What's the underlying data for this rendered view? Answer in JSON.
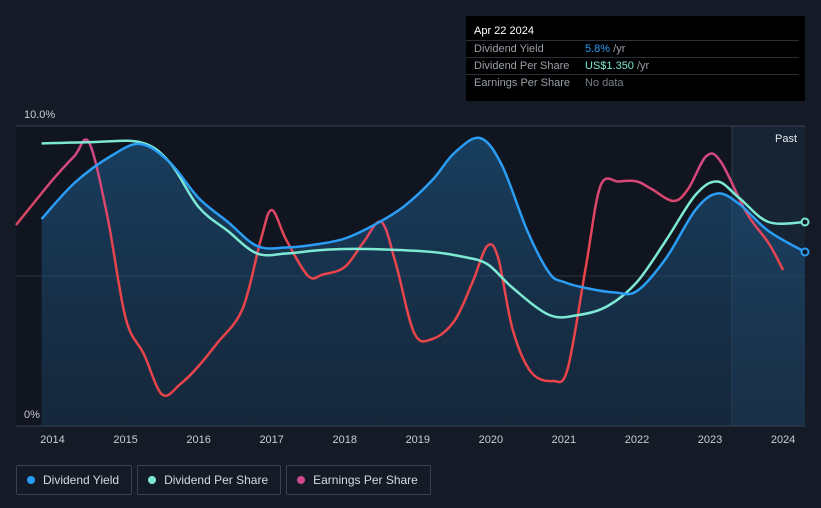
{
  "tooltip": {
    "date": "Apr 22 2024",
    "rows": [
      {
        "label": "Dividend Yield",
        "value": "5.8%",
        "unit": " /yr",
        "color": "#2a9df4"
      },
      {
        "label": "Dividend Per Share",
        "value": "US$1.350",
        "unit": " /yr",
        "color": "#7de8d4"
      },
      {
        "label": "Earnings Per Share",
        "value": "No data",
        "unit": "",
        "color": "#7a808a"
      }
    ]
  },
  "legend": [
    {
      "label": "Dividend Yield",
      "color": "#2a9df4"
    },
    {
      "label": "Dividend Per Share",
      "color": "#7de8d4"
    },
    {
      "label": "Earnings Per Share",
      "color": "#d0488a"
    }
  ],
  "chart_data": {
    "type": "line",
    "title": "",
    "ylim": [
      0,
      10
    ],
    "y_tick_labels": [
      "10.0%",
      "0%"
    ],
    "x_tick_labels": [
      "2014",
      "2015",
      "2016",
      "2017",
      "2018",
      "2019",
      "2020",
      "2021",
      "2022",
      "2023",
      "2024"
    ],
    "x_range": [
      2013.5,
      2024.3
    ],
    "past_region_start": 2023.3,
    "past_label": "Past",
    "series": [
      {
        "name": "Dividend Yield",
        "color": "#2a9df4",
        "area": true,
        "points": [
          [
            2013.85,
            6.9
          ],
          [
            2014.3,
            8.1
          ],
          [
            2014.8,
            9.0
          ],
          [
            2015.2,
            9.4
          ],
          [
            2015.6,
            8.8
          ],
          [
            2016.0,
            7.6
          ],
          [
            2016.4,
            6.8
          ],
          [
            2016.8,
            6.0
          ],
          [
            2017.2,
            5.95
          ],
          [
            2017.6,
            6.05
          ],
          [
            2018.0,
            6.25
          ],
          [
            2018.4,
            6.7
          ],
          [
            2018.8,
            7.3
          ],
          [
            2019.2,
            8.2
          ],
          [
            2019.5,
            9.1
          ],
          [
            2019.85,
            9.6
          ],
          [
            2020.15,
            8.7
          ],
          [
            2020.5,
            6.5
          ],
          [
            2020.8,
            5.1
          ],
          [
            2021.0,
            4.8
          ],
          [
            2021.3,
            4.6
          ],
          [
            2021.7,
            4.45
          ],
          [
            2022.0,
            4.5
          ],
          [
            2022.4,
            5.6
          ],
          [
            2022.8,
            7.2
          ],
          [
            2023.1,
            7.75
          ],
          [
            2023.4,
            7.4
          ],
          [
            2023.8,
            6.5
          ],
          [
            2024.3,
            5.8
          ]
        ]
      },
      {
        "name": "Dividend Per Share",
        "color": "#7de8d4",
        "points": [
          [
            2013.85,
            9.42
          ],
          [
            2014.5,
            9.46
          ],
          [
            2015.2,
            9.46
          ],
          [
            2015.6,
            8.8
          ],
          [
            2016.0,
            7.3
          ],
          [
            2016.4,
            6.5
          ],
          [
            2016.8,
            5.75
          ],
          [
            2017.2,
            5.75
          ],
          [
            2017.6,
            5.85
          ],
          [
            2018.0,
            5.9
          ],
          [
            2018.6,
            5.88
          ],
          [
            2019.2,
            5.8
          ],
          [
            2019.6,
            5.65
          ],
          [
            2019.95,
            5.4
          ],
          [
            2020.3,
            4.6
          ],
          [
            2020.8,
            3.7
          ],
          [
            2021.2,
            3.7
          ],
          [
            2021.6,
            4.0
          ],
          [
            2022.0,
            4.8
          ],
          [
            2022.4,
            6.2
          ],
          [
            2022.8,
            7.7
          ],
          [
            2023.1,
            8.15
          ],
          [
            2023.4,
            7.6
          ],
          [
            2023.8,
            6.8
          ],
          [
            2024.3,
            6.8
          ]
        ]
      },
      {
        "name": "Earnings Per Share",
        "color": "#d0488a",
        "color_low": "#e8444a",
        "points": [
          [
            2013.5,
            6.7
          ],
          [
            2014.0,
            8.2
          ],
          [
            2014.3,
            9.0
          ],
          [
            2014.5,
            9.45
          ],
          [
            2014.75,
            7.0
          ],
          [
            2015.0,
            3.6
          ],
          [
            2015.25,
            2.4
          ],
          [
            2015.5,
            1.05
          ],
          [
            2015.75,
            1.4
          ],
          [
            2016.0,
            2.0
          ],
          [
            2016.25,
            2.75
          ],
          [
            2016.6,
            3.9
          ],
          [
            2016.85,
            6.2
          ],
          [
            2017.0,
            7.2
          ],
          [
            2017.2,
            6.2
          ],
          [
            2017.5,
            5.0
          ],
          [
            2017.7,
            5.05
          ],
          [
            2018.0,
            5.3
          ],
          [
            2018.25,
            6.1
          ],
          [
            2018.5,
            6.8
          ],
          [
            2018.7,
            5.4
          ],
          [
            2018.95,
            3.1
          ],
          [
            2019.2,
            2.9
          ],
          [
            2019.5,
            3.5
          ],
          [
            2019.75,
            4.8
          ],
          [
            2019.95,
            6.0
          ],
          [
            2020.1,
            5.6
          ],
          [
            2020.3,
            3.2
          ],
          [
            2020.55,
            1.8
          ],
          [
            2020.85,
            1.5
          ],
          [
            2021.05,
            1.9
          ],
          [
            2021.3,
            5.3
          ],
          [
            2021.5,
            8.0
          ],
          [
            2021.75,
            8.15
          ],
          [
            2022.0,
            8.15
          ],
          [
            2022.2,
            7.9
          ],
          [
            2022.5,
            7.5
          ],
          [
            2022.7,
            7.9
          ],
          [
            2022.95,
            9.0
          ],
          [
            2023.15,
            8.8
          ],
          [
            2023.5,
            7.1
          ],
          [
            2023.8,
            6.1
          ],
          [
            2024.0,
            5.2
          ]
        ]
      }
    ]
  }
}
